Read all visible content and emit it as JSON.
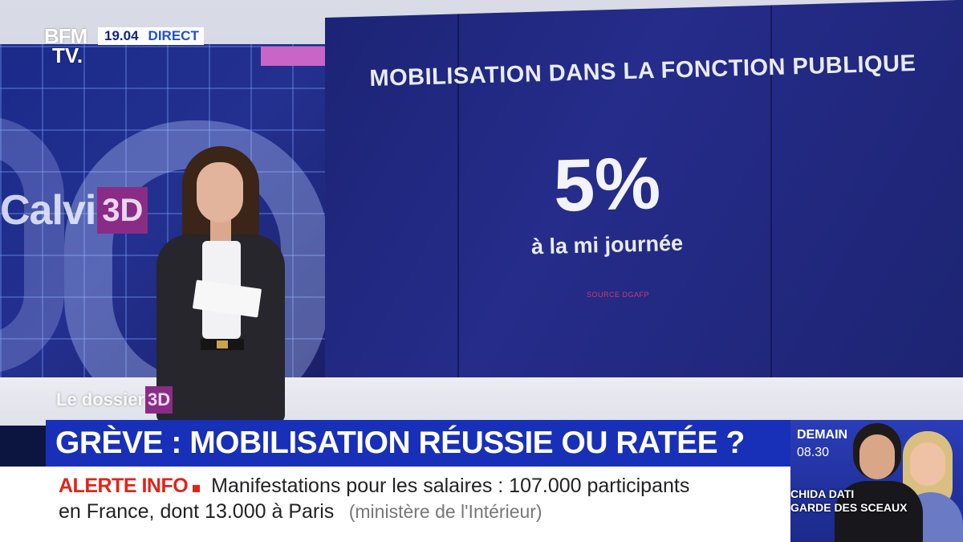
{
  "channel": {
    "logo_line1": "BFM",
    "logo_line2": "TV.",
    "time": "19.04",
    "live_label": "DIRECT"
  },
  "backdrop": {
    "show_logo_word": "Calvi",
    "show_logo_badge": "3D"
  },
  "graphic": {
    "title": "MOBILISATION DANS LA FONCTION PUBLIQUE",
    "value": "5%",
    "subtitle": "à la mi journée",
    "source": "SOURCE DGAFP"
  },
  "segment_tag": {
    "word": "Le dossier",
    "badge": "3D"
  },
  "headline": "GRÈVE : MOBILISATION RÉUSSIE OU RATÉE ?",
  "ticker": {
    "label": "ALERTE INFO",
    "line1": "Manifestations pour les salaires : 107.000 participants",
    "line2": "en France, dont 13.000 à Paris",
    "source": "(ministère de l'Intérieur)"
  },
  "promo": {
    "day": "DEMAIN",
    "time": "08.30",
    "caption_line1": "CHIDA DATI",
    "caption_line2": "GARDE DES SCEAUX"
  },
  "colors": {
    "brand_blue": "#1830b8",
    "alert_red": "#e2241a",
    "show_magenta": "#8a2c86"
  }
}
